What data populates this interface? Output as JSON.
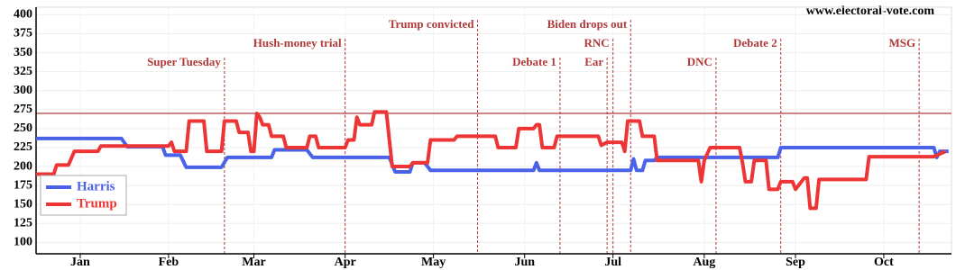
{
  "chart_data": {
    "type": "line",
    "source": "www.electoral-vote.com",
    "xlim": [
      1,
      312
    ],
    "xticks": [
      {
        "value": 16,
        "label": "Jan"
      },
      {
        "value": 46,
        "label": "Feb"
      },
      {
        "value": 75,
        "label": "Mar"
      },
      {
        "value": 106,
        "label": "Apr"
      },
      {
        "value": 136,
        "label": "May"
      },
      {
        "value": 167,
        "label": "Jun"
      },
      {
        "value": 197,
        "label": "Jul"
      },
      {
        "value": 228,
        "label": "Aug"
      },
      {
        "value": 259,
        "label": "Sep"
      },
      {
        "value": 289,
        "label": "Oct"
      }
    ],
    "ylim": [
      85,
      410
    ],
    "yticks": [
      100,
      125,
      150,
      175,
      200,
      225,
      250,
      275,
      300,
      325,
      350,
      375,
      400
    ],
    "grid": true,
    "threshold": 270,
    "threshold_color": "#b03a3a",
    "legend": "lower left",
    "events": [
      {
        "label": "Super Tuesday",
        "x": 65
      },
      {
        "label": "Hush-money trial",
        "x": 106
      },
      {
        "label": "Trump convicted",
        "x": 151
      },
      {
        "label": "Debate 1",
        "x": 179
      },
      {
        "label": "Ear",
        "x": 195
      },
      {
        "label": "RNC",
        "x": 197
      },
      {
        "label": "Biden drops out",
        "x": 203
      },
      {
        "label": "DNC",
        "x": 232
      },
      {
        "label": "Debate 2",
        "x": 254
      },
      {
        "label": "MSG",
        "x": 301
      }
    ],
    "series": [
      {
        "name": "Harris",
        "color": "#4a62e8",
        "x": [
          1,
          30,
          32,
          44,
          45,
          50,
          52,
          64,
          66,
          81,
          82,
          93,
          95,
          121,
          123,
          128,
          129,
          133,
          135,
          170,
          171,
          172,
          203,
          204,
          205,
          207,
          208,
          211,
          212,
          253,
          254,
          306,
          307,
          308,
          311
        ],
        "values": [
          237,
          237,
          226,
          226,
          215,
          215,
          199,
          199,
          212,
          212,
          222,
          222,
          212,
          212,
          193,
          193,
          205,
          205,
          195,
          195,
          205,
          195,
          195,
          210,
          195,
          195,
          208,
          208,
          212,
          212,
          225,
          225,
          212,
          220,
          220
        ]
      },
      {
        "name": "Trump",
        "color": "#ee3535",
        "x": [
          1,
          7,
          8,
          12,
          14,
          22,
          23,
          46,
          47,
          48,
          52,
          53,
          58,
          59,
          64,
          65,
          69,
          70,
          73,
          74,
          75,
          76,
          77,
          78,
          80,
          81,
          85,
          86,
          93,
          94,
          96,
          97,
          106,
          107,
          109,
          110,
          111,
          115,
          116,
          120,
          122,
          128,
          129,
          134,
          135,
          143,
          144,
          157,
          158,
          164,
          165,
          170,
          171,
          172,
          173,
          177,
          178,
          192,
          193,
          195,
          200,
          201,
          202,
          206,
          207,
          211,
          212,
          226,
          227,
          228,
          230,
          240,
          241,
          242,
          244,
          245,
          249,
          250,
          253,
          254,
          258,
          259,
          262,
          263,
          264,
          266,
          267,
          283,
          284,
          306,
          310
        ],
        "values": [
          190,
          190,
          202,
          202,
          220,
          220,
          227,
          227,
          232,
          220,
          220,
          260,
          260,
          220,
          220,
          260,
          260,
          245,
          245,
          220,
          220,
          270,
          265,
          255,
          255,
          240,
          240,
          225,
          225,
          240,
          240,
          225,
          225,
          235,
          235,
          265,
          255,
          255,
          272,
          272,
          200,
          200,
          205,
          205,
          235,
          235,
          240,
          240,
          225,
          225,
          250,
          250,
          255,
          255,
          225,
          225,
          240,
          240,
          228,
          232,
          232,
          220,
          260,
          260,
          240,
          240,
          208,
          208,
          180,
          208,
          225,
          225,
          205,
          180,
          180,
          208,
          208,
          170,
          170,
          180,
          180,
          170,
          185,
          185,
          145,
          145,
          183,
          183,
          213,
          213,
          220
        ]
      }
    ]
  }
}
